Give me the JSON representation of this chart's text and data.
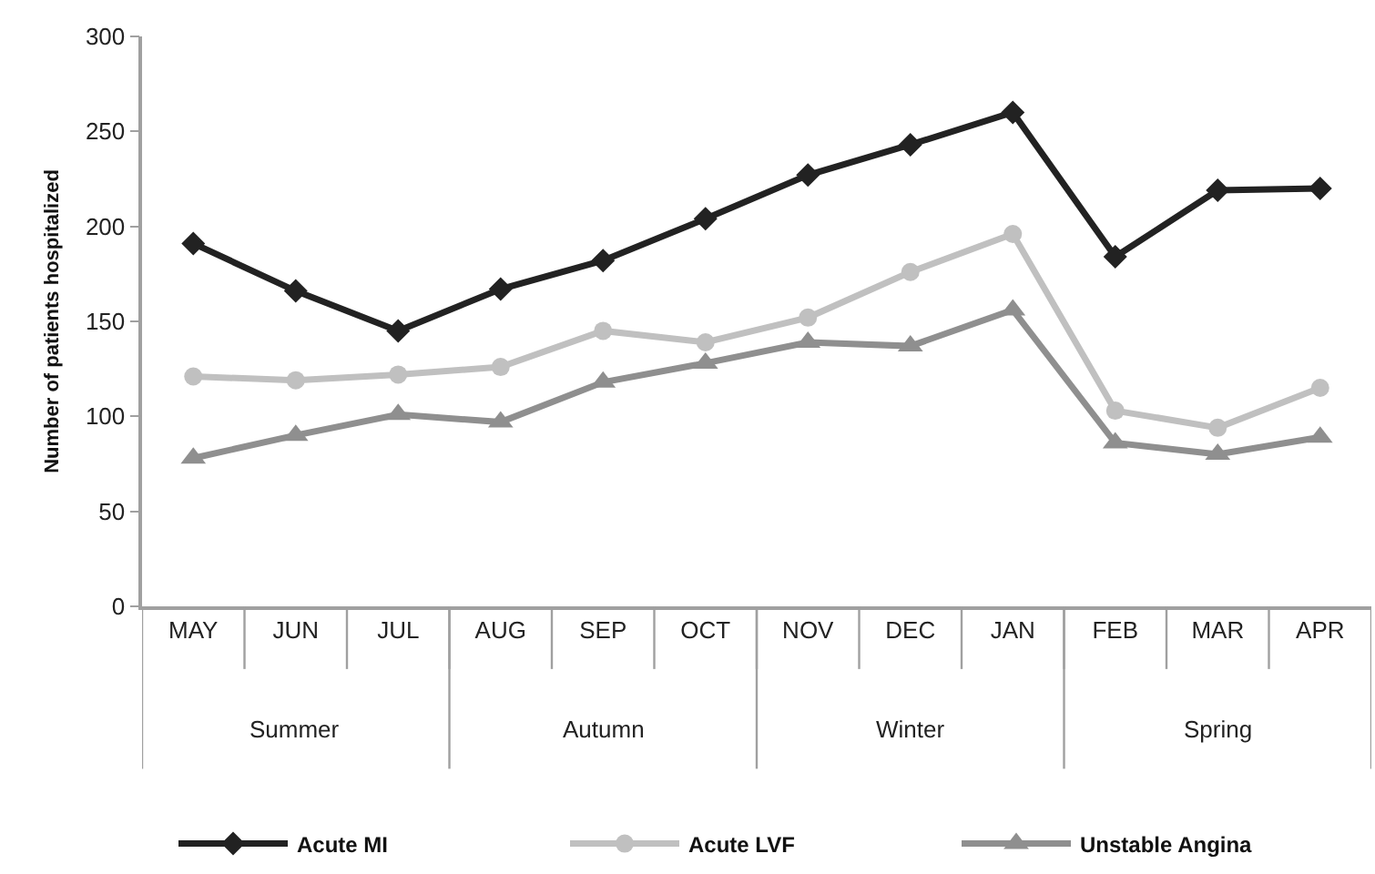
{
  "chart_data": {
    "type": "line",
    "ylabel": "Number of patients hospitalized",
    "categories": [
      "MAY",
      "JUN",
      "JUL",
      "AUG",
      "SEP",
      "OCT",
      "NOV",
      "DEC",
      "JAN",
      "FEB",
      "MAR",
      "APR"
    ],
    "series": [
      {
        "name": "Acute MI",
        "color": "#222222",
        "marker": "diamond",
        "values": [
          191,
          166,
          145,
          167,
          182,
          204,
          227,
          243,
          260,
          184,
          219,
          220
        ]
      },
      {
        "name": "Acute LVF",
        "color": "#c0c0c0",
        "marker": "circle",
        "values": [
          121,
          119,
          122,
          126,
          145,
          139,
          152,
          176,
          196,
          103,
          94,
          115
        ]
      },
      {
        "name": "Unstable Angina",
        "color": "#8f8f8f",
        "marker": "triangle",
        "values": [
          78,
          90,
          101,
          97,
          118,
          128,
          139,
          137,
          156,
          86,
          80,
          89
        ]
      }
    ],
    "annotations": [
      "Summer",
      "Autumn",
      "Winter",
      "Spring"
    ],
    "ylim": [
      0,
      300
    ],
    "yticks": [
      0,
      50,
      100,
      150,
      200,
      250,
      300
    ],
    "grid": false,
    "legend": "bottom",
    "line_style": "solid"
  }
}
